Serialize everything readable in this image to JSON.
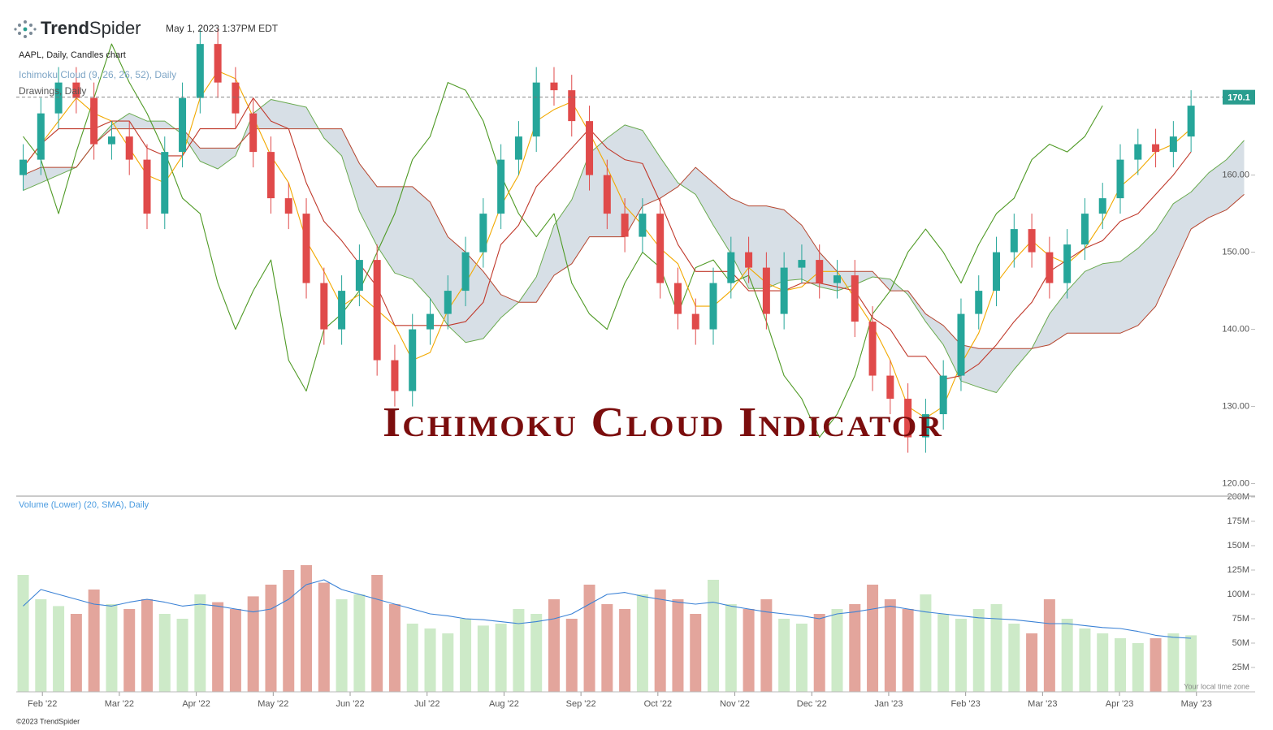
{
  "header": {
    "brand_bold": "Trend",
    "brand_regular": "Spider",
    "timestamp": "May 1, 2023 1:37PM EDT"
  },
  "footer": {
    "copyright": "©2023 TrendSpider",
    "timezone_note": "Your local time zone"
  },
  "chart_data": [
    {
      "type": "candlestick",
      "title": "Ichimoku Cloud Indicator",
      "subtitles": [
        "AAPL, Daily, Candles chart",
        "Ichimoku Cloud (9, 26, 26, 52), Daily",
        "Drawings, Daily"
      ],
      "xlim": [
        0.66,
        16.71
      ],
      "x": [
        0.75,
        0.98,
        1.21,
        1.44,
        1.67,
        1.9,
        2.13,
        2.36,
        2.59,
        2.82,
        3.05,
        3.28,
        3.51,
        3.74,
        3.97,
        4.2,
        4.43,
        4.66,
        4.89,
        5.12,
        5.35,
        5.58,
        5.81,
        6.04,
        6.27,
        6.5,
        6.73,
        6.96,
        7.19,
        7.42,
        7.65,
        7.88,
        8.11,
        8.34,
        8.57,
        8.8,
        9.03,
        9.26,
        9.49,
        9.72,
        9.95,
        10.18,
        10.41,
        10.64,
        10.87,
        11.1,
        11.33,
        11.56,
        11.79,
        12.02,
        12.25,
        12.48,
        12.71,
        12.94,
        13.17,
        13.4,
        13.63,
        13.86,
        14.09,
        14.32,
        14.55,
        14.78,
        15.01,
        15.24,
        15.47,
        15.7,
        15.93,
        16.16,
        16.39,
        16.62
      ],
      "ylim": [
        118.9,
        182.7
      ],
      "yticks": [
        {
          "value": 120,
          "label": "120.00"
        },
        {
          "value": 130,
          "label": "130.00"
        },
        {
          "value": 140,
          "label": "140.00"
        },
        {
          "value": 150,
          "label": "150.00"
        },
        {
          "value": 160,
          "label": "160.00"
        }
      ],
      "grid": false,
      "last_price": 170.1,
      "last_price_color": "#2a9d8f",
      "up_color": "#26a69a",
      "down_color": "#e04a4a",
      "candles": {
        "open": [
          160,
          162,
          168,
          172,
          170,
          164,
          165,
          162,
          155,
          163,
          170,
          177,
          172,
          168,
          163,
          157,
          155,
          146,
          140,
          145,
          149,
          136,
          132,
          140,
          142,
          145,
          150,
          155,
          162,
          165,
          172,
          171,
          167,
          160,
          155,
          152,
          155,
          146,
          142,
          140,
          146,
          150,
          148,
          142,
          148,
          149,
          146,
          147,
          141,
          134,
          131,
          126,
          129,
          134,
          142,
          145,
          150,
          153,
          150,
          146,
          151,
          155,
          157,
          162,
          164,
          163,
          165,
          null,
          null,
          null
        ],
        "high": [
          164,
          170,
          174,
          174,
          172,
          167,
          167,
          164,
          165,
          172,
          179,
          179,
          174,
          170,
          165,
          159,
          157,
          148,
          147,
          151,
          151,
          138,
          142,
          144,
          147,
          152,
          157,
          164,
          167,
          174,
          174,
          173,
          169,
          162,
          157,
          157,
          157,
          148,
          144,
          148,
          152,
          152,
          150,
          150,
          151,
          151,
          149,
          149,
          143,
          136,
          133,
          131,
          136,
          144,
          147,
          152,
          155,
          155,
          152,
          153,
          157,
          159,
          164,
          166,
          166,
          167,
          171,
          null,
          null,
          null
        ],
        "low": [
          158,
          160,
          166,
          168,
          162,
          162,
          160,
          153,
          153,
          161,
          168,
          170,
          166,
          161,
          155,
          153,
          144,
          138,
          138,
          143,
          134,
          130,
          130,
          138,
          140,
          143,
          148,
          153,
          160,
          163,
          169,
          165,
          158,
          153,
          150,
          150,
          144,
          140,
          138,
          138,
          144,
          146,
          140,
          140,
          146,
          144,
          144,
          139,
          132,
          129,
          124,
          124,
          127,
          132,
          140,
          143,
          148,
          148,
          144,
          144,
          149,
          153,
          155,
          160,
          161,
          161,
          163,
          null,
          null,
          null
        ],
        "close": [
          162,
          168,
          172,
          170,
          164,
          165,
          162,
          155,
          163,
          170,
          177,
          172,
          168,
          163,
          157,
          155,
          146,
          140,
          145,
          149,
          136,
          132,
          140,
          142,
          145,
          150,
          155,
          162,
          165,
          172,
          171,
          167,
          160,
          155,
          152,
          155,
          146,
          142,
          140,
          146,
          150,
          148,
          142,
          148,
          149,
          146,
          147,
          141,
          134,
          131,
          126,
          129,
          134,
          142,
          145,
          150,
          153,
          150,
          146,
          151,
          155,
          157,
          162,
          164,
          163,
          165,
          169,
          null,
          null,
          null
        ]
      },
      "cloud": {
        "fill": "#d3dce3",
        "span_a": {
          "color": "#6aaa50",
          "values": [
            158,
            159,
            160,
            161,
            164,
            166.5,
            168,
            167,
            167,
            165.3,
            161.8,
            160.8,
            162.5,
            168,
            169.8,
            169.3,
            168.8,
            164.8,
            162.5,
            155.3,
            150.8,
            147.3,
            146.5,
            144,
            140.5,
            138.3,
            138.8,
            141.5,
            143.5,
            146.8,
            153.5,
            156.8,
            162.8,
            164.8,
            166.5,
            165.8,
            162.3,
            159,
            157.5,
            153.5,
            149.8,
            145.3,
            145.3,
            146.3,
            146.5,
            145.5,
            145,
            145.8,
            146.8,
            146.5,
            144.5,
            141,
            138,
            133.3,
            132.5,
            131.8,
            134.8,
            137.5,
            142,
            145,
            147.5,
            148.5,
            148.8,
            150.5,
            152.8,
            156.3,
            157.8,
            160.3,
            162,
            164.5
          ]
        },
        "span_b": {
          "color": "#b5452e",
          "values": [
            160,
            161,
            161,
            161,
            164,
            166,
            166,
            166,
            166,
            166,
            163.5,
            163.5,
            163.5,
            166,
            166,
            166,
            166,
            166,
            166,
            161.5,
            158.5,
            158.5,
            158.5,
            156.5,
            152,
            150,
            147.5,
            144.5,
            143.5,
            143.5,
            147,
            148.5,
            152,
            152,
            152,
            156,
            157,
            158.5,
            161,
            159,
            157,
            156,
            156,
            155.5,
            153.5,
            150,
            147.5,
            147.5,
            147.5,
            145,
            145,
            142,
            140.5,
            138,
            137.5,
            137.5,
            137.5,
            137.5,
            138,
            139.5,
            139.5,
            139.5,
            139.5,
            140.5,
            143,
            148,
            153,
            154.5,
            155.5,
            157.5
          ]
        }
      },
      "lines": [
        {
          "color": "#4f9a25",
          "values": [
            165,
            162,
            155,
            163,
            170,
            177,
            172,
            168,
            163,
            157,
            155,
            146,
            140,
            145,
            149,
            136,
            132,
            140,
            142,
            145,
            150,
            155,
            162,
            165,
            172,
            171,
            167,
            160,
            155,
            152,
            155,
            146,
            142,
            140,
            146,
            150,
            148,
            142,
            148,
            149,
            146,
            147,
            141,
            134,
            131,
            126,
            129,
            134,
            142,
            145,
            150,
            153,
            150,
            146,
            151,
            155,
            157,
            162,
            164,
            163,
            165,
            169,
            null,
            null,
            null,
            null,
            null,
            null,
            null,
            null
          ]
        },
        {
          "color": "#f2a900",
          "values": [
            161,
            164,
            167,
            170,
            168,
            167,
            163.5,
            160,
            159,
            162.5,
            170,
            173.5,
            172.5,
            167.5,
            162.5,
            159,
            151.5,
            147.5,
            143,
            144.5,
            142.5,
            140.5,
            136,
            137,
            142.5,
            146,
            150,
            156,
            160,
            167,
            168.5,
            169.5,
            165.5,
            161,
            156,
            153.5,
            150.5,
            148.5,
            143,
            143,
            145,
            148,
            146,
            145,
            145.5,
            147.5,
            147.5,
            144,
            140.5,
            136,
            130,
            128.5,
            130,
            135.5,
            139.5,
            146,
            149,
            151.5,
            149.5,
            148.5,
            150.5,
            154,
            158.5,
            160.5,
            163,
            164,
            166,
            null,
            null,
            null
          ]
        },
        {
          "color": "#c0392b",
          "values": [
            161,
            164,
            166,
            166,
            166,
            167,
            167,
            163.5,
            162.5,
            162.5,
            166,
            166,
            166,
            170,
            167,
            166,
            159,
            154,
            151.5,
            148.5,
            145.5,
            140.5,
            140.5,
            140.5,
            140.5,
            141,
            143.5,
            151,
            153.5,
            158.5,
            161,
            163.5,
            166,
            163.5,
            162,
            161.5,
            156.5,
            151,
            147.5,
            147.5,
            147.5,
            145,
            145,
            145,
            146,
            146,
            145.5,
            145,
            141.5,
            140,
            136.5,
            136.5,
            133.5,
            134,
            135.5,
            138,
            141,
            143.5,
            147.5,
            149,
            150.5,
            151.5,
            154,
            155,
            157.5,
            160,
            163,
            null,
            null,
            null
          ]
        }
      ]
    },
    {
      "type": "bar",
      "subtitle": "Volume (Lower) (20, SMA), Daily",
      "ylim": [
        0,
        200000000
      ],
      "yticks": [
        {
          "value": 25000000,
          "label": "25M"
        },
        {
          "value": 50000000,
          "label": "50M"
        },
        {
          "value": 75000000,
          "label": "75M"
        },
        {
          "value": 100000000,
          "label": "100M"
        },
        {
          "value": 125000000,
          "label": "125M"
        },
        {
          "value": 150000000,
          "label": "150M"
        },
        {
          "value": 175000000,
          "label": "175M"
        },
        {
          "value": 200000000,
          "label": "200M"
        }
      ],
      "xticks": [
        {
          "value": 1,
          "label": "Feb '22"
        },
        {
          "value": 2,
          "label": "Mar '22"
        },
        {
          "value": 3,
          "label": "Apr '22"
        },
        {
          "value": 4,
          "label": "May '22"
        },
        {
          "value": 5,
          "label": "Jun '22"
        },
        {
          "value": 6,
          "label": "Jul '22"
        },
        {
          "value": 7,
          "label": "Aug '22"
        },
        {
          "value": 8,
          "label": "Sep '22"
        },
        {
          "value": 9,
          "label": "Oct '22"
        },
        {
          "value": 10,
          "label": "Nov '22"
        },
        {
          "value": 11,
          "label": "Dec '22"
        },
        {
          "value": 12,
          "label": "Jan '23"
        },
        {
          "value": 13,
          "label": "Feb '23"
        },
        {
          "value": 14,
          "label": "Mar '23"
        },
        {
          "value": 15,
          "label": "Apr '23"
        },
        {
          "value": 16,
          "label": "May '23"
        }
      ],
      "up_color": "#cdeac8",
      "down_color": "#e3a59c",
      "values": [
        120000000,
        95000000,
        88000000,
        80000000,
        105000000,
        90000000,
        85000000,
        95000000,
        80000000,
        75000000,
        100000000,
        92000000,
        85000000,
        98000000,
        110000000,
        125000000,
        130000000,
        112000000,
        95000000,
        100000000,
        120000000,
        90000000,
        70000000,
        65000000,
        60000000,
        75000000,
        68000000,
        70000000,
        85000000,
        80000000,
        95000000,
        75000000,
        110000000,
        90000000,
        85000000,
        100000000,
        105000000,
        95000000,
        80000000,
        115000000,
        90000000,
        85000000,
        95000000,
        75000000,
        70000000,
        80000000,
        85000000,
        90000000,
        110000000,
        95000000,
        85000000,
        100000000,
        80000000,
        75000000,
        85000000,
        90000000,
        70000000,
        60000000,
        95000000,
        75000000,
        65000000,
        60000000,
        55000000,
        50000000,
        55000000,
        60000000,
        58000000,
        null,
        null,
        null
      ],
      "lines": [
        {
          "color": "#3b82d6",
          "values": [
            88000000,
            105000000,
            100000000,
            95000000,
            90000000,
            88000000,
            92000000,
            95000000,
            92000000,
            88000000,
            90000000,
            88000000,
            85000000,
            82000000,
            85000000,
            95000000,
            110000000,
            115000000,
            105000000,
            100000000,
            95000000,
            90000000,
            85000000,
            80000000,
            78000000,
            75000000,
            74000000,
            72000000,
            70000000,
            72000000,
            75000000,
            80000000,
            90000000,
            100000000,
            102000000,
            98000000,
            95000000,
            92000000,
            90000000,
            92000000,
            88000000,
            85000000,
            82000000,
            80000000,
            78000000,
            75000000,
            80000000,
            82000000,
            85000000,
            88000000,
            85000000,
            82000000,
            80000000,
            78000000,
            76000000,
            75000000,
            74000000,
            72000000,
            70000000,
            70000000,
            68000000,
            66000000,
            65000000,
            62000000,
            58000000,
            56000000,
            55000000,
            null,
            null,
            null
          ]
        }
      ]
    }
  ]
}
